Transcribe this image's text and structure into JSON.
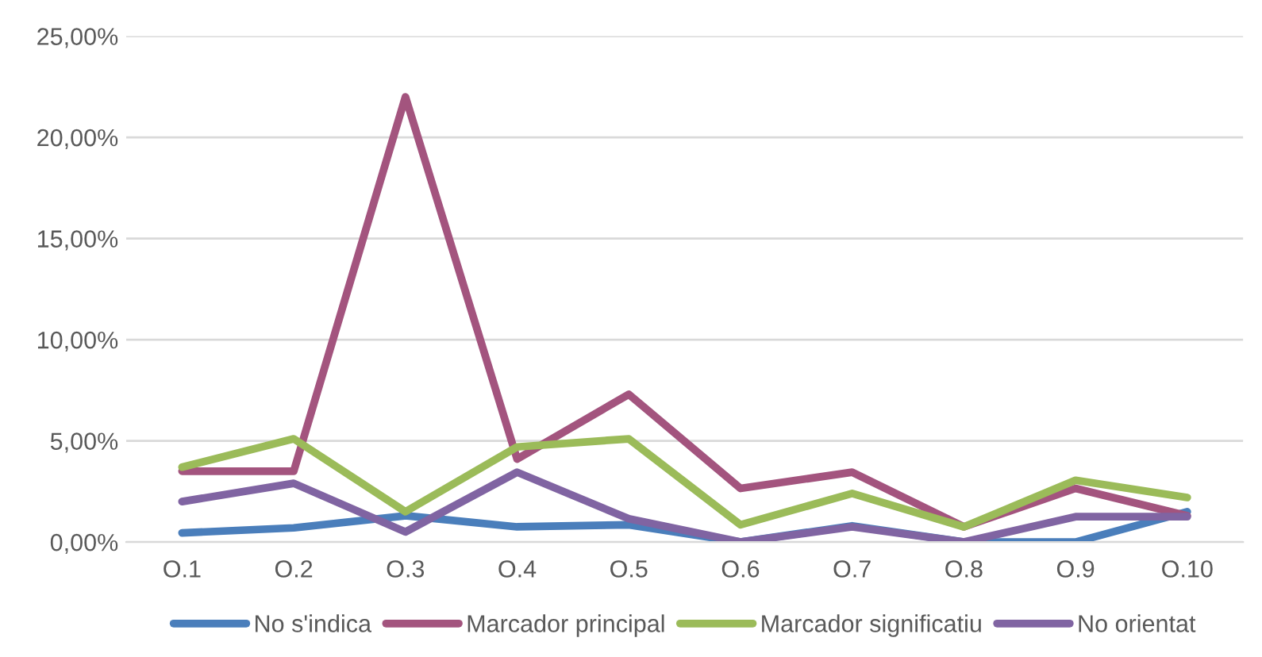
{
  "chart_data": {
    "type": "line",
    "categories": [
      "O.1",
      "O.2",
      "O.3",
      "O.4",
      "O.5",
      "O.6",
      "O.7",
      "O.8",
      "O.9",
      "O.10"
    ],
    "series": [
      {
        "name": "No s'indica",
        "color": "#4a7ebb",
        "values": [
          0.45,
          0.7,
          1.3,
          0.75,
          0.85,
          0,
          0.8,
          0,
          0,
          1.5
        ]
      },
      {
        "name": "Marcador principal",
        "color": "#a3547e",
        "values": [
          3.5,
          3.5,
          22,
          4.1,
          7.3,
          2.65,
          3.45,
          0.75,
          2.65,
          1.3
        ]
      },
      {
        "name": "Marcador significatiu",
        "color": "#9bbb59",
        "values": [
          3.7,
          5.1,
          1.5,
          4.7,
          5.1,
          0.85,
          2.4,
          0.75,
          3.05,
          2.2
        ]
      },
      {
        "name": "No orientat",
        "color": "#8064a2",
        "values": [
          2.0,
          2.9,
          0.5,
          3.45,
          1.15,
          0,
          0.75,
          0,
          1.25,
          1.25
        ]
      }
    ],
    "ylim": [
      0,
      25
    ],
    "yticks": [
      {
        "value": 0,
        "label": "0,00%"
      },
      {
        "value": 5,
        "label": "5,00%"
      },
      {
        "value": 10,
        "label": "10,00%"
      },
      {
        "value": 15,
        "label": "15,00%"
      },
      {
        "value": 20,
        "label": "20,00%"
      },
      {
        "value": 25,
        "label": "25,00%"
      }
    ],
    "grid": "y",
    "legend": "bottom",
    "marker": "none",
    "line_style": "solid"
  }
}
